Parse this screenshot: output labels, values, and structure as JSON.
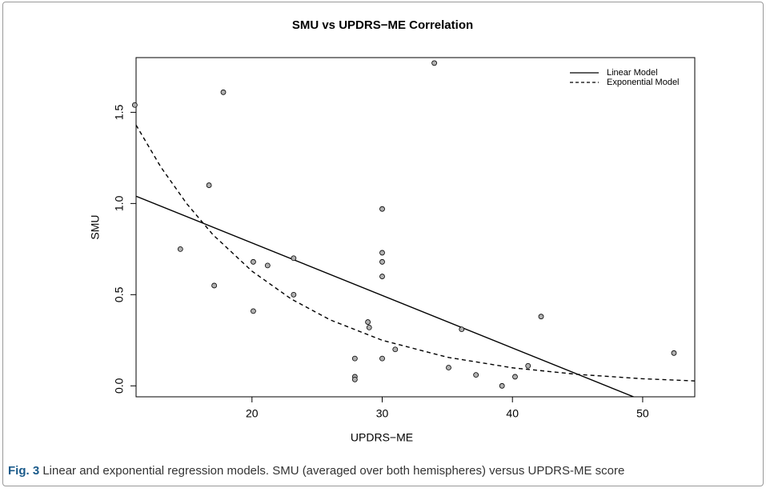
{
  "chart_data": {
    "type": "scatter",
    "title": "SMU vs UPDRS−ME Correlation",
    "xlabel": "UPDRS−ME",
    "ylabel": "SMU",
    "x": [
      11.0,
      14.5,
      17.8,
      16.7,
      17.1,
      20.1,
      20.1,
      21.2,
      23.2,
      23.2,
      28.9,
      29.0,
      27.9,
      27.9,
      27.9,
      30.0,
      30.0,
      30.0,
      30.0,
      30.0,
      31.0,
      34.0,
      36.1,
      35.1,
      37.2,
      39.2,
      40.2,
      41.2,
      42.2,
      52.4
    ],
    "values": [
      1.54,
      0.75,
      1.61,
      1.1,
      0.55,
      0.68,
      0.41,
      0.66,
      0.7,
      0.5,
      0.35,
      0.32,
      0.15,
      0.05,
      0.035,
      0.97,
      0.73,
      0.68,
      0.6,
      0.15,
      0.2,
      1.77,
      0.31,
      0.1,
      0.06,
      0.0,
      0.05,
      0.11,
      0.38,
      0.18
    ],
    "color": "#b0b0b0",
    "lines": [
      {
        "name": "Linear Model",
        "dash": "solid",
        "x": [
          11.1,
          49.3
        ],
        "values": [
          1.04,
          -0.06
        ]
      },
      {
        "name": "Exponential Model",
        "dash": "dashed",
        "x": [
          11.1,
          13,
          15,
          17,
          20,
          23,
          26,
          30,
          35,
          40,
          45,
          50,
          54
        ],
        "values": [
          1.43,
          1.2,
          0.998,
          0.829,
          0.629,
          0.477,
          0.362,
          0.25,
          0.157,
          0.099,
          0.063,
          0.039,
          0.027
        ]
      }
    ],
    "xlim": [
      11.1,
      54.0
    ],
    "ylim": [
      -0.06,
      1.8
    ],
    "xticks": [
      20,
      30,
      40,
      50
    ],
    "yticks": [
      {
        "value": 0,
        "label": "0.0"
      },
      0.5,
      {
        "value": 1,
        "label": "1.0"
      },
      1.5
    ],
    "legend": "top-right"
  },
  "caption": {
    "label": "Fig. 3",
    "text": "Linear and exponential regression models. SMU (averaged over both hemispheres) versus UPDRS-ME score"
  }
}
